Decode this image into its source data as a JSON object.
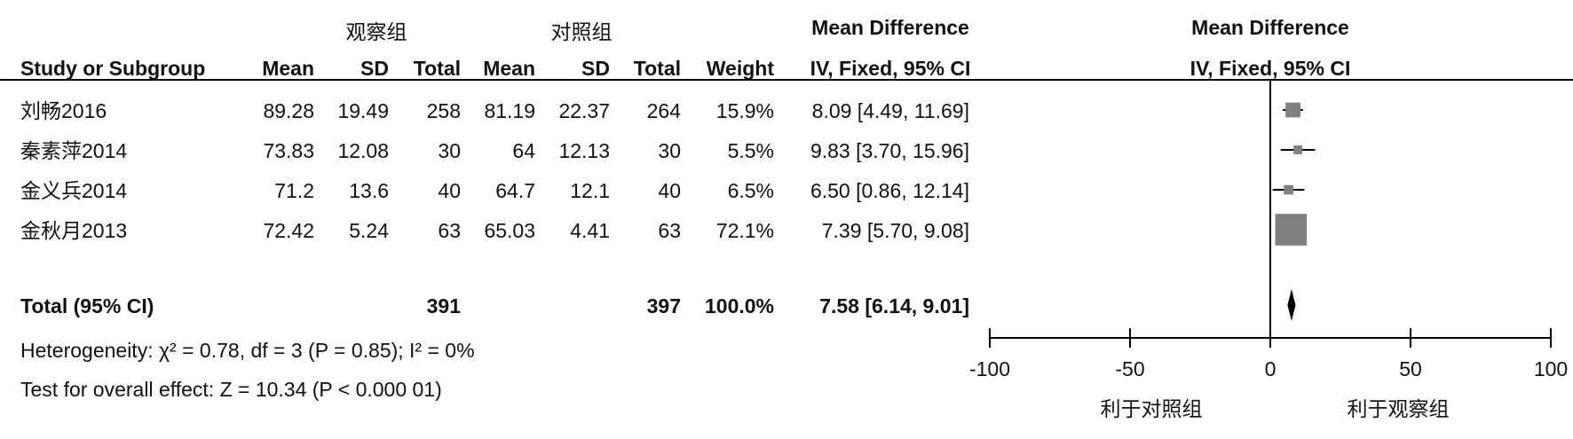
{
  "chart_data": {
    "type": "forest",
    "groups": [
      "观察组",
      "对照组"
    ],
    "columns": [
      "Study or Subgroup",
      "Mean",
      "SD",
      "Total",
      "Mean",
      "SD",
      "Total",
      "Weight"
    ],
    "effect_title": "Mean Difference",
    "effect_subtitle": "IV, Fixed, 95% CI",
    "studies": [
      {
        "name": "刘畅2016",
        "mean1": 89.28,
        "sd1": 19.49,
        "total1": 258,
        "mean2": 81.19,
        "sd2": 22.37,
        "total2": 264,
        "weight": 15.9,
        "weight_label": "15.9%",
        "md": 8.09,
        "ci": [
          4.49,
          11.69
        ],
        "ci_label": "8.09 [4.49, 11.69]"
      },
      {
        "name": "秦素萍2014",
        "mean1": 73.83,
        "sd1": 12.08,
        "total1": 30,
        "mean2": 64,
        "sd2": 12.13,
        "total2": 30,
        "weight": 5.5,
        "weight_label": "5.5%",
        "md": 9.83,
        "ci": [
          3.7,
          15.96
        ],
        "ci_label": "9.83 [3.70, 15.96]"
      },
      {
        "name": "金义兵2014",
        "mean1": 71.2,
        "sd1": 13.6,
        "total1": 40,
        "mean2": 64.7,
        "sd2": 12.1,
        "total2": 40,
        "weight": 6.5,
        "weight_label": "6.5%",
        "md": 6.5,
        "ci": [
          0.86,
          12.14
        ],
        "ci_label": "6.50 [0.86, 12.14]"
      },
      {
        "name": "金秋月2013",
        "mean1": 72.42,
        "sd1": 5.24,
        "total1": 63,
        "mean2": 65.03,
        "sd2": 4.41,
        "total2": 63,
        "weight": 72.1,
        "weight_label": "72.1%",
        "md": 7.39,
        "ci": [
          5.7,
          9.08
        ],
        "ci_label": "7.39 [5.70, 9.08]"
      }
    ],
    "total": {
      "label": "Total (95% CI)",
      "total1": 391,
      "total2": 397,
      "weight": 100,
      "weight_label": "100.0%",
      "md": 7.58,
      "ci": [
        6.14,
        9.01
      ],
      "ci_label": "7.58 [6.14, 9.01]"
    },
    "heterogeneity": "Heterogeneity: χ² = 0.78, df = 3 (P = 0.85); I² = 0%",
    "overall_effect": "Test for overall effect: Z = 10.34 (P < 0.000 01)",
    "xlim": [
      -100,
      100
    ],
    "xticks": [
      -100,
      -50,
      0,
      50,
      100
    ],
    "xlabels": [
      "利于对照组",
      "利于观察组"
    ],
    "square_color": "#808080",
    "diamond_color": "#000000"
  }
}
